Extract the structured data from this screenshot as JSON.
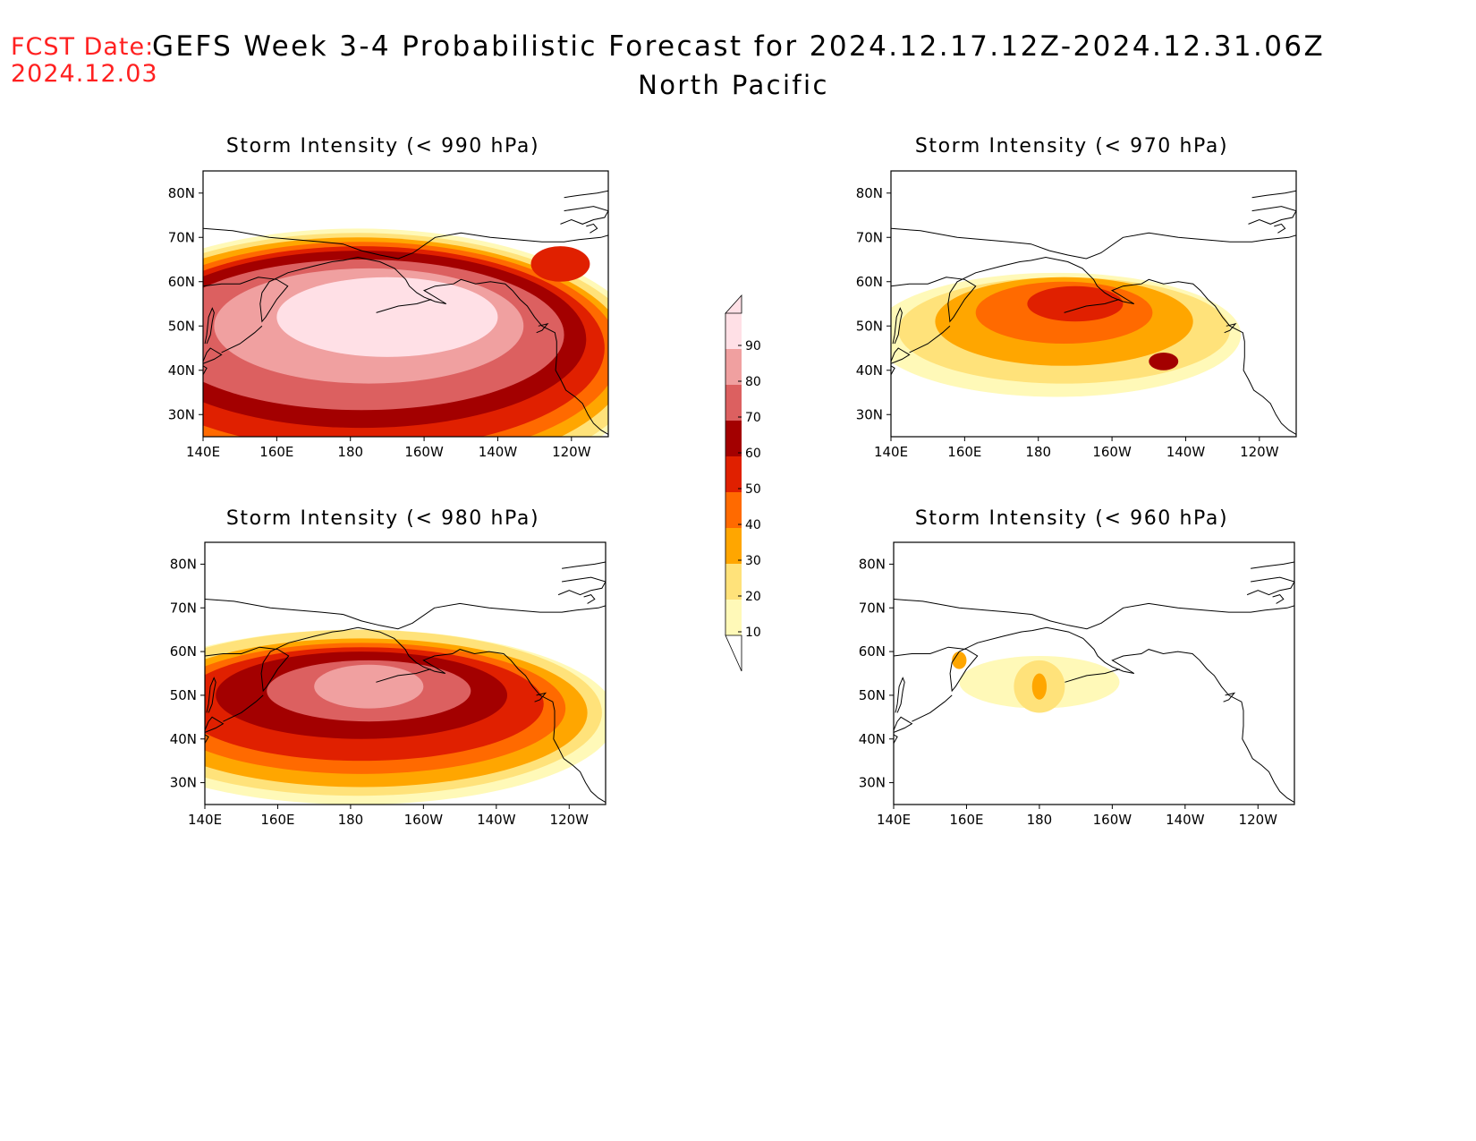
{
  "header": {
    "fcst_label": "FCST Date:",
    "fcst_date": "2024.12.03",
    "title": "GEFS Week 3-4 Probabilistic Forecast for 2024.12.17.12Z-2024.12.31.06Z",
    "subtitle": "North Pacific"
  },
  "x_ticks": [
    "140E",
    "160E",
    "180",
    "160W",
    "140W",
    "120W"
  ],
  "y_ticks": [
    "80N",
    "70N",
    "60N",
    "50N",
    "40N",
    "30N"
  ],
  "legend": {
    "levels": [
      "10",
      "20",
      "30",
      "40",
      "50",
      "60",
      "70",
      "80",
      "90"
    ],
    "colors": [
      "#fff9b8",
      "#ffe27a",
      "#ffa600",
      "#ff6a00",
      "#e02000",
      "#a30000",
      "#dc6060",
      "#f0a0a0",
      "#ffe0e6"
    ]
  },
  "chart_data": [
    {
      "type": "heatmap",
      "title": "Storm Intensity (< 990 hPa)",
      "x_range": [
        "140E",
        "110W"
      ],
      "y_range": [
        "25N",
        "85N"
      ],
      "probability_field": [
        {
          "lon": 190,
          "lat": 52,
          "rx": 30,
          "ry": 9,
          "prob": 90
        },
        {
          "lon": 185,
          "lat": 50,
          "rx": 42,
          "ry": 13,
          "prob": 80
        },
        {
          "lon": 183,
          "lat": 48,
          "rx": 55,
          "ry": 17,
          "prob": 70
        },
        {
          "lon": 183,
          "lat": 47,
          "rx": 61,
          "ry": 20,
          "prob": 60
        },
        {
          "lon": 183,
          "lat": 45,
          "rx": 66,
          "ry": 23,
          "prob": 50
        },
        {
          "lon": 183,
          "lat": 44,
          "rx": 70,
          "ry": 25,
          "prob": 40
        },
        {
          "lon": 182,
          "lat": 43,
          "rx": 74,
          "ry": 27,
          "prob": 30
        },
        {
          "lon": 182,
          "lat": 42,
          "rx": 78,
          "ry": 29,
          "prob": 20
        },
        {
          "lon": 182,
          "lat": 42,
          "rx": 80,
          "ry": 30,
          "prob": 10
        },
        {
          "lon": 237,
          "lat": 64,
          "rx": 8,
          "ry": 4,
          "prob": 50
        }
      ]
    },
    {
      "type": "heatmap",
      "title": "Storm Intensity (< 970 hPa)",
      "x_range": [
        "140E",
        "110W"
      ],
      "y_range": [
        "25N",
        "85N"
      ],
      "probability_field": [
        {
          "lon": 190,
          "lat": 55,
          "rx": 13,
          "ry": 4,
          "prob": 50
        },
        {
          "lon": 187,
          "lat": 53,
          "rx": 24,
          "ry": 7,
          "prob": 40
        },
        {
          "lon": 187,
          "lat": 51,
          "rx": 35,
          "ry": 10,
          "prob": 30
        },
        {
          "lon": 187,
          "lat": 49,
          "rx": 45,
          "ry": 12,
          "prob": 20
        },
        {
          "lon": 185,
          "lat": 48,
          "rx": 50,
          "ry": 14,
          "prob": 10
        },
        {
          "lon": 214,
          "lat": 42,
          "rx": 4,
          "ry": 2,
          "prob": 60
        }
      ]
    },
    {
      "type": "heatmap",
      "title": "Storm Intensity (< 980 hPa)",
      "x_range": [
        "140E",
        "110W"
      ],
      "y_range": [
        "25N",
        "85N"
      ],
      "probability_field": [
        {
          "lon": 185,
          "lat": 52,
          "rx": 15,
          "ry": 5,
          "prob": 80
        },
        {
          "lon": 185,
          "lat": 51,
          "rx": 28,
          "ry": 7,
          "prob": 70
        },
        {
          "lon": 183,
          "lat": 50,
          "rx": 40,
          "ry": 10,
          "prob": 60
        },
        {
          "lon": 183,
          "lat": 48,
          "rx": 50,
          "ry": 13,
          "prob": 50
        },
        {
          "lon": 183,
          "lat": 47,
          "rx": 56,
          "ry": 15,
          "prob": 40
        },
        {
          "lon": 183,
          "lat": 46,
          "rx": 62,
          "ry": 17,
          "prob": 30
        },
        {
          "lon": 182,
          "lat": 46,
          "rx": 67,
          "ry": 19,
          "prob": 20
        },
        {
          "lon": 182,
          "lat": 45,
          "rx": 71,
          "ry": 20,
          "prob": 10
        }
      ]
    },
    {
      "type": "heatmap",
      "title": "Storm Intensity (< 960 hPa)",
      "x_range": [
        "140E",
        "110W"
      ],
      "y_range": [
        "25N",
        "85N"
      ],
      "probability_field": [
        {
          "lon": 180,
          "lat": 52,
          "rx": 2,
          "ry": 3,
          "prob": 30
        },
        {
          "lon": 180,
          "lat": 52,
          "rx": 7,
          "ry": 6,
          "prob": 20
        },
        {
          "lon": 180,
          "lat": 53,
          "rx": 22,
          "ry": 6,
          "prob": 10
        },
        {
          "lon": 158,
          "lat": 58,
          "rx": 2,
          "ry": 2,
          "prob": 30
        }
      ]
    }
  ]
}
